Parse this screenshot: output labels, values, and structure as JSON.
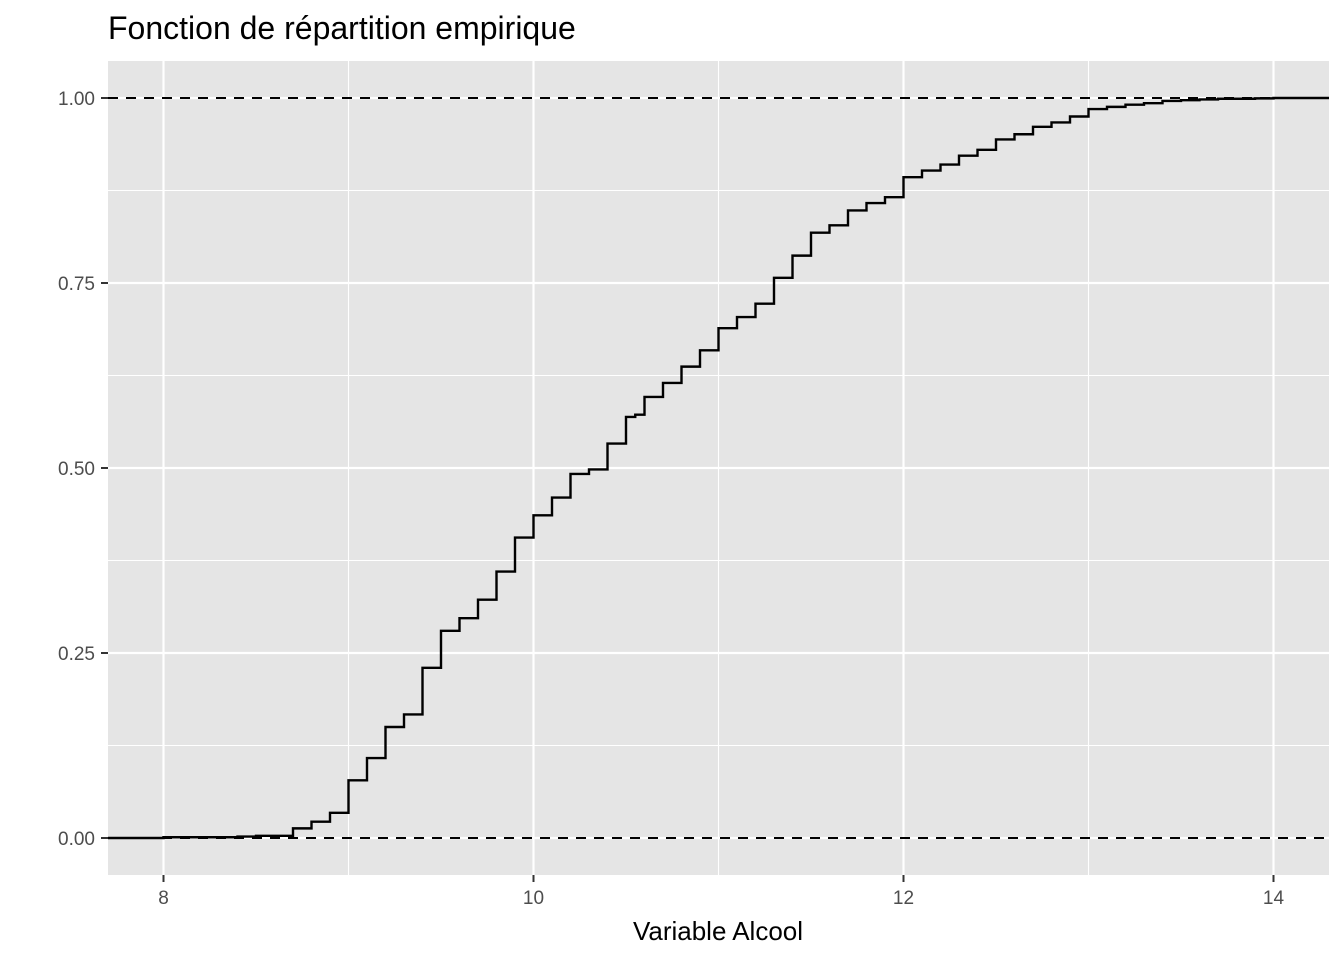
{
  "chart_data": {
    "type": "line",
    "title": "Fonction de répartition empirique",
    "xlabel": "Variable Alcool",
    "ylabel": "",
    "xlim": [
      7.7,
      14.3
    ],
    "ylim": [
      -0.05,
      1.05
    ],
    "x_ticks": [
      8,
      10,
      12,
      14
    ],
    "x_tick_labels": [
      "8",
      "10",
      "12",
      "14"
    ],
    "y_ticks": [
      0,
      0.25,
      0.5,
      0.75,
      1
    ],
    "y_tick_labels": [
      "0.00",
      "0.25",
      "0.50",
      "0.75",
      "1.00"
    ],
    "grid": true,
    "legend": "none",
    "reference_lines": [
      {
        "y": 0,
        "style": "dashed"
      },
      {
        "y": 1,
        "style": "dashed"
      }
    ],
    "step_direction": "hv",
    "series": [
      {
        "x": [
          8.0,
          8.4,
          8.5,
          8.7,
          8.8,
          8.9,
          9.0,
          9.1,
          9.2,
          9.3,
          9.4,
          9.5,
          9.6,
          9.7,
          9.8,
          9.9,
          10.0,
          10.1,
          10.2,
          10.3,
          10.4,
          10.5,
          10.55,
          10.6,
          10.7,
          10.8,
          10.9,
          11.0,
          11.1,
          11.2,
          11.3,
          11.4,
          11.5,
          11.6,
          11.7,
          11.8,
          11.9,
          12.0,
          12.1,
          12.2,
          12.3,
          12.4,
          12.5,
          12.6,
          12.7,
          12.8,
          12.9,
          13.0,
          13.1,
          13.2,
          13.3,
          13.4,
          13.5,
          13.6,
          13.7,
          13.8,
          13.9,
          14.0
        ],
        "y": [
          0.001,
          0.002,
          0.003,
          0.013,
          0.022,
          0.034,
          0.078,
          0.108,
          0.15,
          0.167,
          0.23,
          0.28,
          0.297,
          0.322,
          0.36,
          0.406,
          0.436,
          0.46,
          0.492,
          0.498,
          0.533,
          0.569,
          0.572,
          0.596,
          0.615,
          0.637,
          0.659,
          0.689,
          0.704,
          0.722,
          0.757,
          0.787,
          0.818,
          0.828,
          0.848,
          0.858,
          0.866,
          0.893,
          0.902,
          0.91,
          0.922,
          0.93,
          0.944,
          0.951,
          0.961,
          0.967,
          0.975,
          0.985,
          0.988,
          0.991,
          0.993,
          0.996,
          0.997,
          0.998,
          0.999,
          0.999,
          0.9995,
          1.0
        ]
      }
    ]
  },
  "colors": {
    "panel": "#e5e5e5",
    "grid": "#ffffff",
    "line": "#000000",
    "tick_text": "#4d4d4d",
    "text": "#000000"
  }
}
